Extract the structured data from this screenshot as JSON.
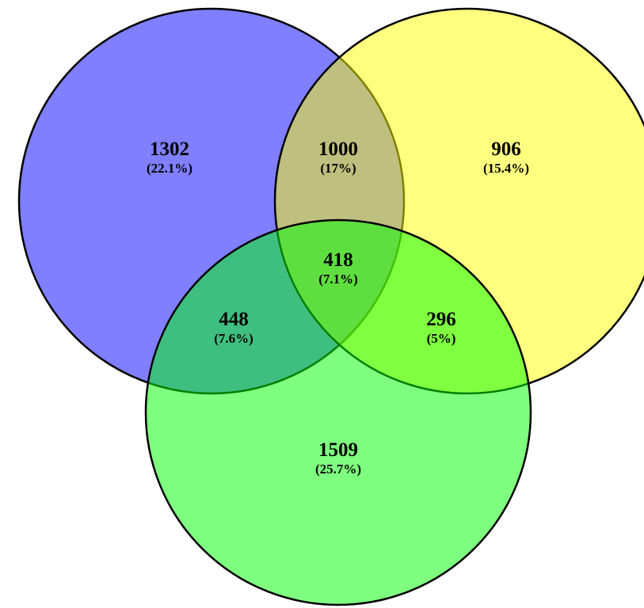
{
  "colors": {
    "set_a": "#0000ff",
    "set_b": "#ffff00",
    "set_c": "#00ff00",
    "fill_opacity": 0.5,
    "outline": "#000000"
  },
  "regions": {
    "a_only": {
      "count": "1302",
      "percent": "(22.1%)"
    },
    "ab": {
      "count": "1000",
      "percent": "(17%)"
    },
    "b_only": {
      "count": "906",
      "percent": "(15.4%)"
    },
    "abc": {
      "count": "418",
      "percent": "(7.1%)"
    },
    "ac": {
      "count": "448",
      "percent": "(7.6%)"
    },
    "bc": {
      "count": "296",
      "percent": "(5%)"
    },
    "c_only": {
      "count": "1509",
      "percent": "(25.7%)"
    }
  }
}
